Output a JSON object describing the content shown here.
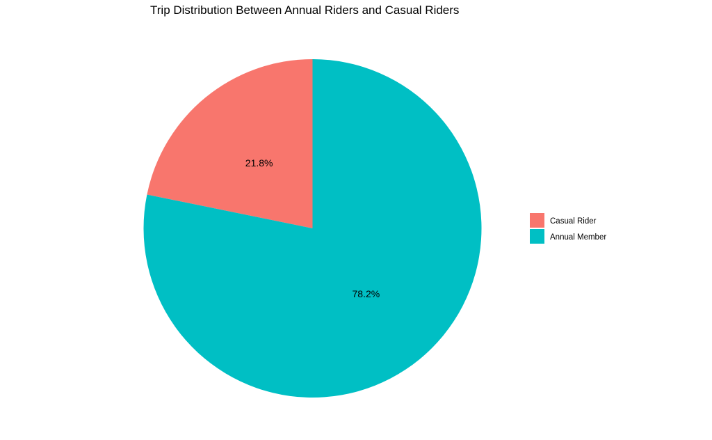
{
  "chart_data": {
    "type": "pie",
    "title": "Trip Distribution Between Annual Riders and Casual Riders",
    "categories": [
      "Casual Rider",
      "Annual Member"
    ],
    "values": [
      21.8,
      78.2
    ],
    "labels": [
      "21.8%",
      "78.2%"
    ],
    "colors": [
      "#F8766D",
      "#00BFC4"
    ],
    "start_angle": "12 o'clock",
    "direction": "counterclockwise",
    "legend": {
      "placement": "right",
      "entries": [
        "Casual Rider",
        "Annual Member"
      ]
    }
  }
}
